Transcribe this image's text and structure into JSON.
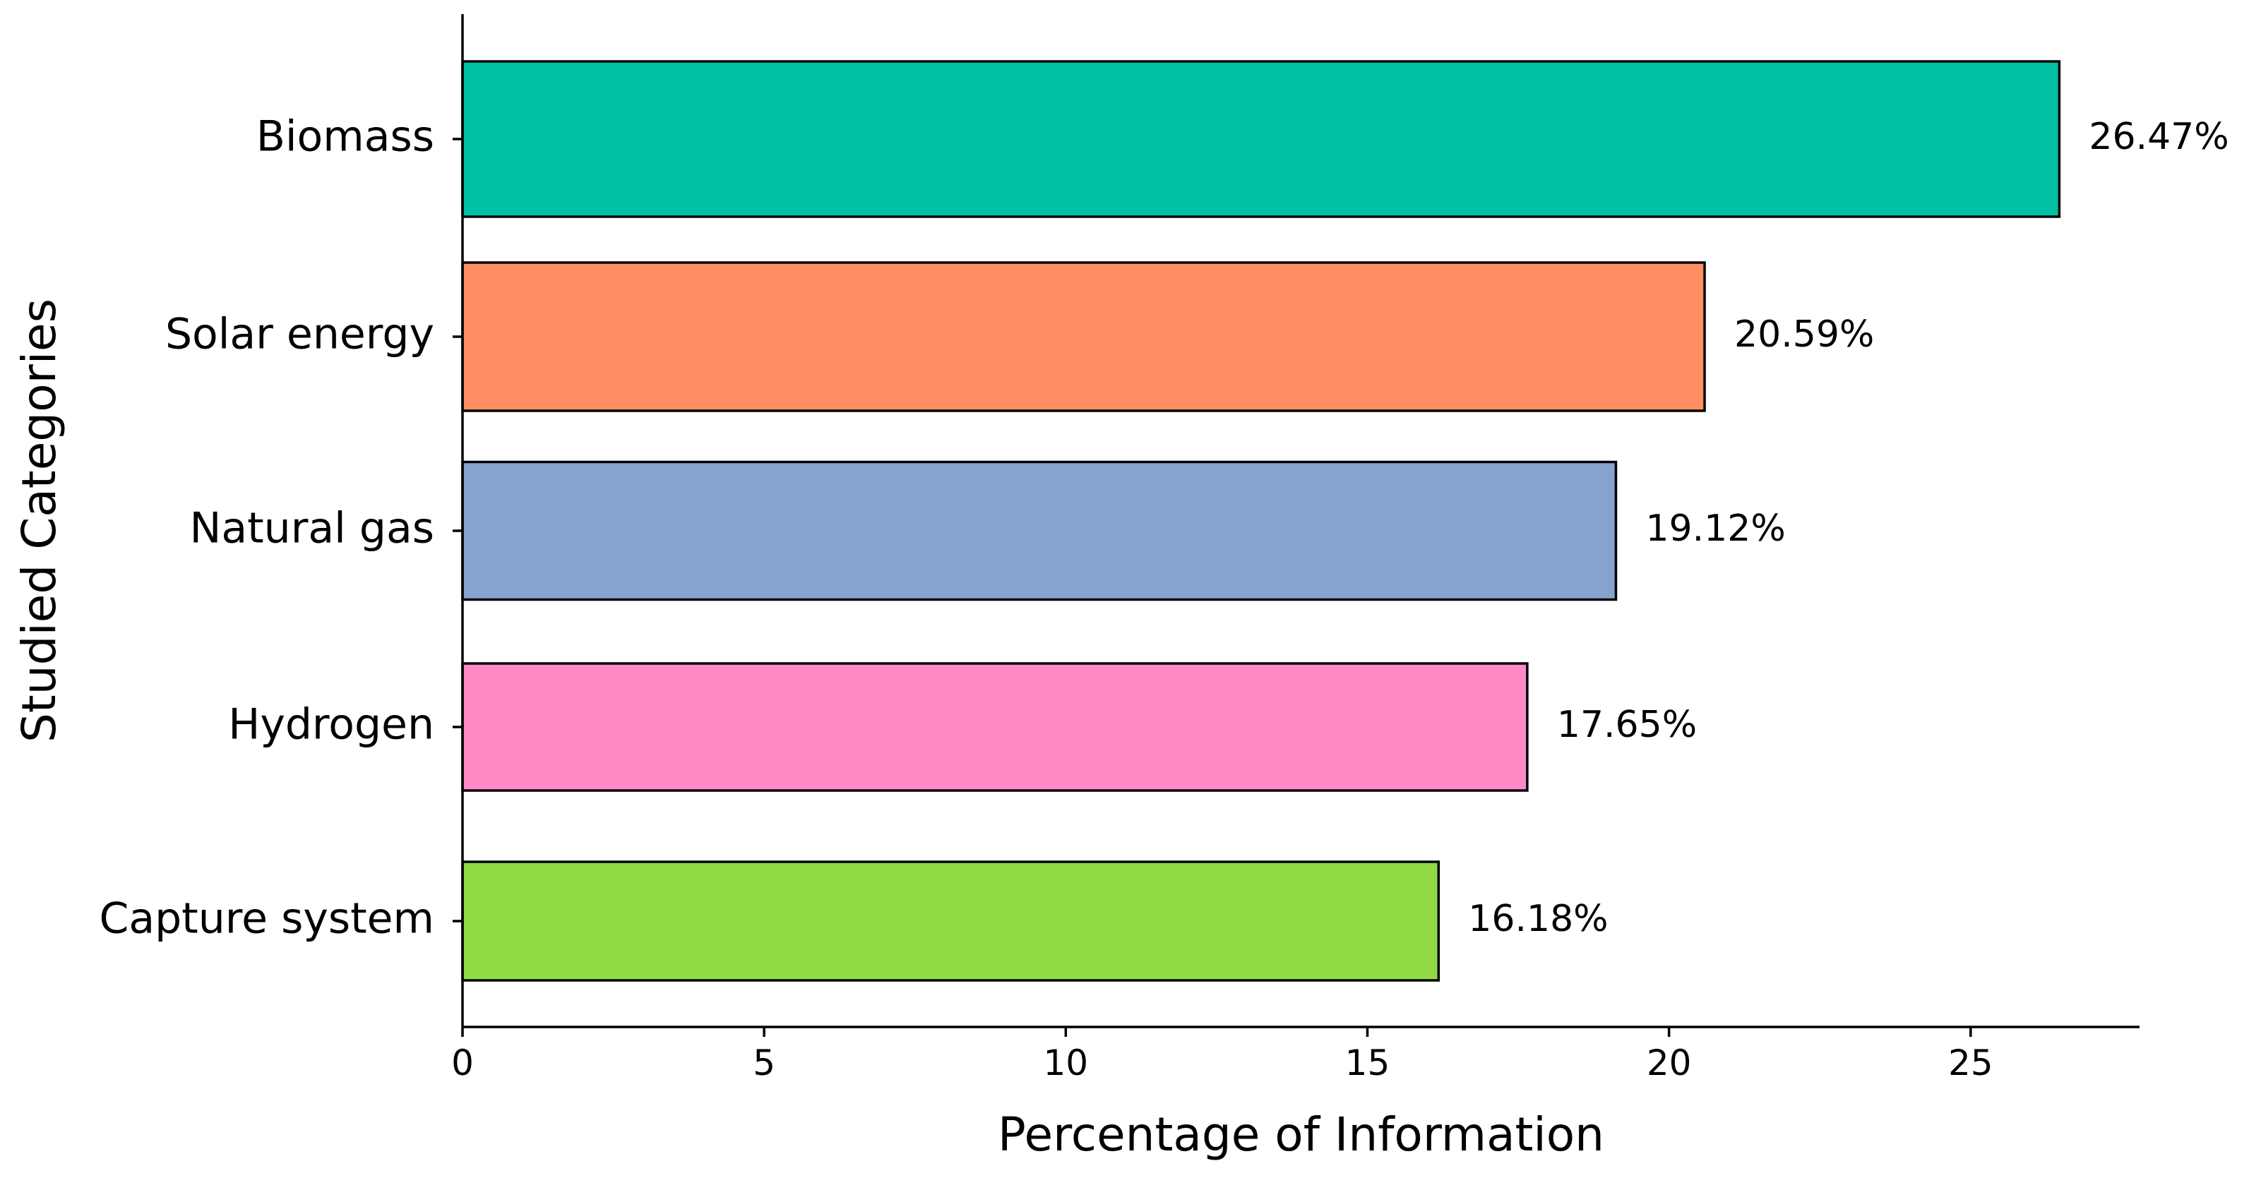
{
  "chart_data": {
    "type": "bar",
    "orientation": "horizontal",
    "categories": [
      "Biomass",
      "Solar energy",
      "Natural gas",
      "Hydrogen",
      "Capture system"
    ],
    "values": [
      26.47,
      20.59,
      19.12,
      17.65,
      16.18
    ],
    "data_labels": [
      "26.47%",
      "20.59%",
      "19.12%",
      "17.65%",
      "16.18%"
    ],
    "colors": [
      "#00C1A5",
      "#FF8E62",
      "#86A2CF",
      "#FF8AC6",
      "#92DA44"
    ],
    "xlabel": "Percentage of Information",
    "ylabel": "Studied Categories",
    "xlim": [
      0,
      27.8
    ],
    "xticks": [
      0,
      5,
      10,
      15,
      20,
      25
    ],
    "xtick_labels": [
      "0",
      "5",
      "10",
      "15",
      "20",
      "25"
    ],
    "grid": false,
    "legend": "none"
  }
}
